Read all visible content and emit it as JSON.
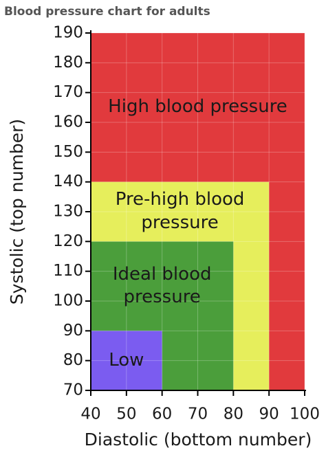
{
  "chart_data": {
    "type": "region",
    "title": "Blood pressure chart for adults",
    "x_label": "Diastolic (bottom number)",
    "y_label": "Systolic (top number)",
    "series": [
      {
        "name": "High blood pressure",
        "color": "#e13a3d",
        "x": 100,
        "y": 190
      },
      {
        "name": "Pre-high blood pressure",
        "color": "#e6ee5c",
        "x": 90,
        "y": 140
      },
      {
        "name": "Ideal blood pressure",
        "color": "#4b9e3b",
        "x": 80,
        "y": 120
      },
      {
        "name": "Low",
        "color": "#7b5cf0",
        "x": 60,
        "y": 90
      }
    ],
    "xlim": [
      40,
      100
    ],
    "ylim": [
      70,
      190
    ],
    "xticks": [
      40,
      50,
      60,
      70,
      80,
      90,
      100
    ],
    "yticks": [
      70,
      80,
      90,
      100,
      110,
      120,
      130,
      140,
      150,
      160,
      170,
      180,
      190
    ],
    "grid": true
  }
}
